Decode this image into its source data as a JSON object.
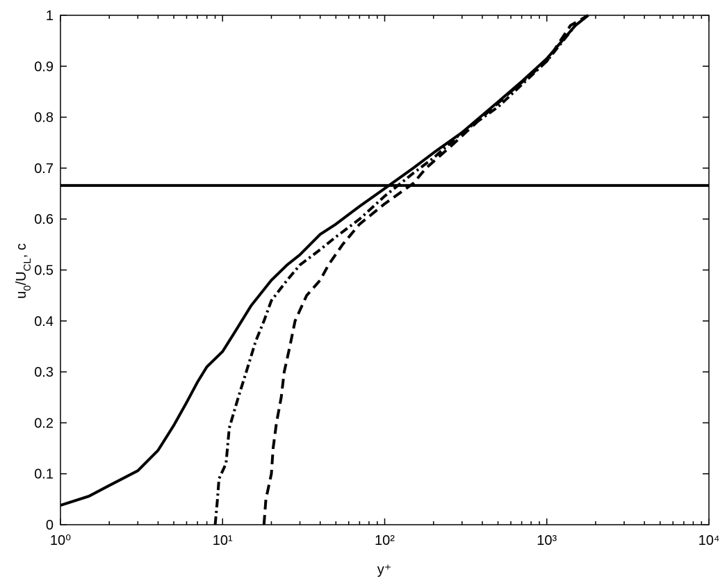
{
  "chart_data": {
    "type": "line",
    "xscale": "log",
    "xlim": [
      1,
      10000
    ],
    "ylim": [
      0,
      1
    ],
    "xticks": [
      {
        "value": 1,
        "label": "10⁰"
      },
      {
        "value": 10,
        "label": "10¹"
      },
      {
        "value": 100,
        "label": "10²"
      },
      {
        "value": 1000,
        "label": "10³"
      },
      {
        "value": 10000,
        "label": "10⁴"
      }
    ],
    "yticks": [
      0,
      0.1,
      0.2,
      0.3,
      0.4,
      0.5,
      0.6,
      0.7,
      0.8,
      0.9,
      1
    ],
    "xlabel": "y⁺",
    "ylabel": [
      "u",
      "0",
      "/U",
      "CL",
      ", c"
    ],
    "series": [
      {
        "color": "#000000",
        "dash": "solid",
        "x": [
          1,
          1.5,
          2,
          3,
          4,
          5,
          6,
          7,
          8,
          10,
          12,
          15,
          20,
          25,
          30,
          40,
          50,
          70,
          100,
          150,
          200,
          300,
          500,
          700,
          1000,
          1500,
          1800
        ],
        "values": [
          0.038,
          0.056,
          0.077,
          0.106,
          0.146,
          0.195,
          0.24,
          0.28,
          0.31,
          0.34,
          0.38,
          0.43,
          0.48,
          0.51,
          0.53,
          0.57,
          0.59,
          0.625,
          0.66,
          0.7,
          0.73,
          0.77,
          0.83,
          0.87,
          0.915,
          0.98,
          1.0
        ]
      },
      {
        "color": "#000000",
        "dash": "dashdot",
        "x": [
          9,
          9.3,
          9.5,
          10.5,
          11,
          12.5,
          14,
          16,
          18,
          20,
          25,
          30,
          40,
          50,
          70,
          100,
          150,
          200,
          300,
          500,
          1000,
          1500,
          1800
        ],
        "values": [
          0,
          0.05,
          0.09,
          0.12,
          0.19,
          0.25,
          0.3,
          0.36,
          0.4,
          0.44,
          0.48,
          0.51,
          0.54,
          0.565,
          0.6,
          0.645,
          0.69,
          0.72,
          0.77,
          0.82,
          0.91,
          0.98,
          1.0
        ]
      },
      {
        "color": "#000000",
        "dash": "dashed",
        "x": [
          18,
          18.5,
          20,
          20.5,
          21.5,
          23,
          24,
          26,
          28,
          33,
          40,
          45,
          55,
          70,
          100,
          150,
          180,
          250,
          400,
          600,
          1000,
          1400,
          1800
        ],
        "values": [
          0,
          0.05,
          0.1,
          0.15,
          0.2,
          0.25,
          0.3,
          0.35,
          0.4,
          0.45,
          0.48,
          0.51,
          0.55,
          0.59,
          0.63,
          0.67,
          0.7,
          0.74,
          0.8,
          0.85,
          0.91,
          0.98,
          1.0
        ]
      },
      {
        "color": "#000000",
        "dash": "solid",
        "x": [
          1,
          10000
        ],
        "values": [
          0.666,
          0.666
        ]
      }
    ]
  }
}
